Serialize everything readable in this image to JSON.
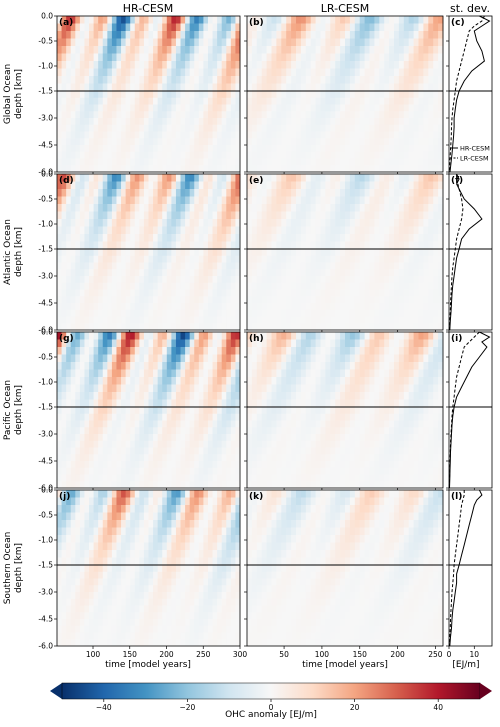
{
  "chart_data": {
    "type": "heatmap",
    "column_titles": [
      "HR-CESM",
      "LR-CESM",
      "st. dev."
    ],
    "row_labels": [
      "Global Ocean\ndepth [km]",
      "Atlantic Ocean\ndepth [km]",
      "Pacific Ocean\ndepth [km]",
      "Southern Ocean\ndepth [km]"
    ],
    "panel_labels": [
      "(a)",
      "(b)",
      "(c)",
      "(d)",
      "(e)",
      "(f)",
      "(g)",
      "(h)",
      "(i)",
      "(j)",
      "(k)",
      "(l)"
    ],
    "y_ticks": [
      "0.0",
      "-0.5",
      "-1.0",
      "-1.5",
      "-3.0",
      "-4.5",
      "-6.0"
    ],
    "y_axis": {
      "upper_range_km": [
        -1.5,
        0
      ],
      "lower_range_km": [
        -6.0,
        -1.5
      ],
      "note": "split depth axis"
    },
    "x_hr": {
      "ticks": [
        100,
        150,
        200,
        250,
        300
      ],
      "range": [
        51,
        300
      ],
      "label": "time [model years]"
    },
    "x_lr": {
      "ticks": [
        50,
        100,
        150,
        200,
        250
      ],
      "range": [
        1,
        260
      ],
      "label": "time [model years]"
    },
    "x_sd": {
      "ticks": [
        0,
        10
      ],
      "range": [
        0,
        17
      ],
      "label": "[EJ/m]"
    },
    "legend": {
      "solid": "HR-CESM",
      "dashed": "LR-CESM"
    },
    "colorbar": {
      "label": "OHC anomaly [EJ/m]",
      "ticks": [
        -40,
        -20,
        0,
        20,
        40
      ],
      "range": [
        -50,
        50
      ],
      "colors": [
        "#08306b",
        "#2166ac",
        "#4393c3",
        "#92c5de",
        "#d1e5f0",
        "#f7f7f7",
        "#fddbc7",
        "#f4a582",
        "#d6604d",
        "#b2182b",
        "#67001f"
      ]
    },
    "std_dev_profiles": {
      "depth_km": [
        0.0,
        -0.1,
        -0.2,
        -0.3,
        -0.5,
        -0.7,
        -0.9,
        -1.1,
        -1.3,
        -1.5,
        -2.0,
        -2.5,
        -3.0,
        -3.5,
        -4.0,
        -4.5,
        -5.0,
        -5.5,
        -6.0
      ],
      "global": {
        "HR-CESM": [
          12,
          16,
          13,
          10,
          11,
          13,
          14,
          9,
          6,
          4,
          3,
          2.5,
          2,
          2,
          1.8,
          1.5,
          1.2,
          0.8,
          0.4
        ],
        "LR-CESM": [
          14,
          13,
          10,
          8,
          7,
          6,
          5,
          4,
          3,
          2.5,
          2,
          1.5,
          1.2,
          1,
          0.9,
          0.7,
          0.5,
          0.3,
          0.2
        ]
      },
      "atlantic": {
        "HR-CESM": [
          3,
          4,
          3,
          4,
          6,
          10,
          13,
          8,
          5,
          4,
          3,
          2.5,
          2,
          1.5,
          1.2,
          1,
          0.8,
          0.5,
          0.3
        ],
        "LR-CESM": [
          3,
          3,
          3.5,
          4,
          5,
          5.5,
          5,
          4,
          3,
          2.5,
          2,
          1.5,
          1.2,
          1,
          0.8,
          0.6,
          0.5,
          0.3,
          0.2
        ]
      },
      "pacific": {
        "HR-CESM": [
          12,
          16,
          13,
          15,
          12,
          9,
          7,
          5,
          3,
          2,
          1.5,
          1.2,
          1,
          0.8,
          0.6,
          0.5,
          0.4,
          0.3,
          0.2
        ],
        "LR-CESM": [
          12,
          10,
          8,
          6,
          5,
          4,
          3,
          2.5,
          2,
          1.5,
          1.2,
          1,
          0.8,
          0.6,
          0.5,
          0.4,
          0.3,
          0.2,
          0.1
        ]
      },
      "southern": {
        "HR-CESM": [
          12,
          13,
          11,
          10,
          9,
          8,
          7,
          6,
          5,
          4,
          3,
          3,
          2.5,
          2,
          1.5,
          1.2,
          1,
          0.6,
          0.3
        ],
        "LR-CESM": [
          6,
          6,
          5.5,
          5,
          4.5,
          4,
          3.5,
          3,
          2.5,
          2,
          1.8,
          1.5,
          1.2,
          1,
          0.8,
          0.6,
          0.5,
          0.3,
          0.2
        ]
      }
    }
  }
}
